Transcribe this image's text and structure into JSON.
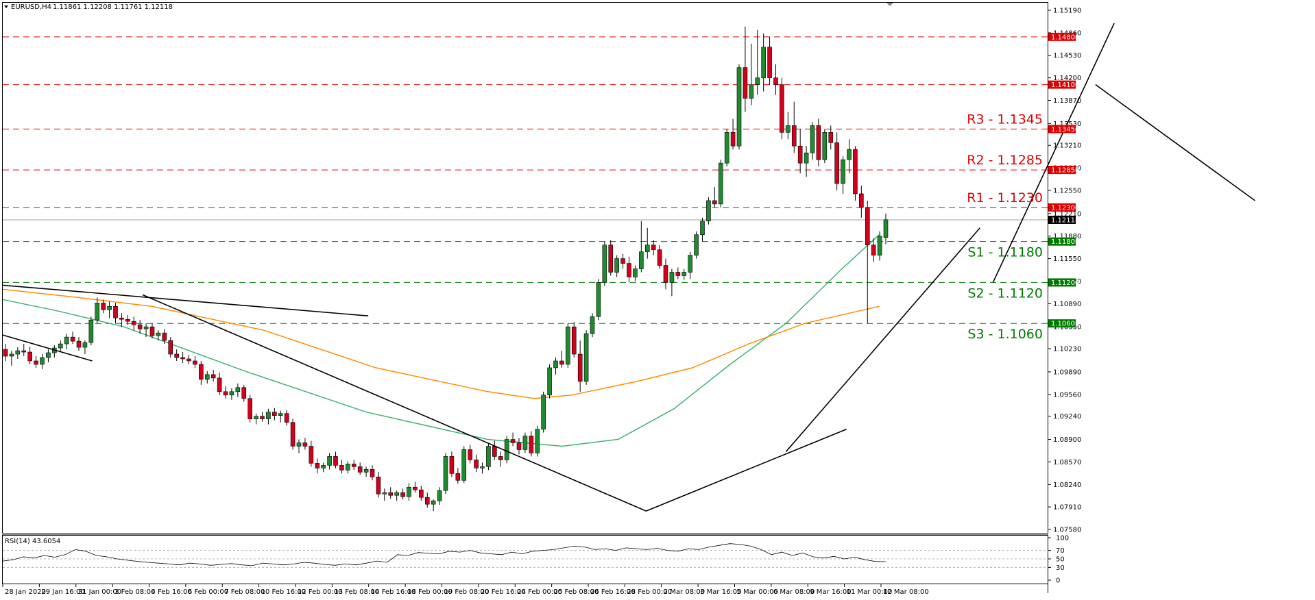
{
  "header": {
    "symbol": "EURUSD,H4",
    "ohlc": "1.11861 1.12208 1.11761 1.12118"
  },
  "chart_data": {
    "type": "candlestick",
    "ylim": [
      1.0756,
      1.1537
    ],
    "y_ticks": [
      "1.15190",
      "1.14860",
      "1.14530",
      "1.14200",
      "1.13870",
      "1.13530",
      "1.13210",
      "1.12880",
      "1.12550",
      "1.12210",
      "1.11880",
      "1.11550",
      "1.11220",
      "1.10890",
      "1.10550",
      "1.10230",
      "1.09890",
      "1.09560",
      "1.09240",
      "1.08900",
      "1.08570",
      "1.08240",
      "1.07910",
      "1.07580"
    ],
    "x_ticks": [
      "28 Jan 2020",
      "29 Jan 16:00",
      "31 Jan 00:00",
      "3 Feb 08:00",
      "4 Feb 16:00",
      "6 Feb 00:00",
      "7 Feb 08:00",
      "10 Feb 16:00",
      "12 Feb 00:00",
      "13 Feb 08:00",
      "14 Feb 16:00",
      "18 Feb 00:00",
      "19 Feb 08:00",
      "20 Feb 16:00",
      "24 Feb 00:00",
      "25 Feb 08:00",
      "26 Feb 16:00",
      "28 Feb 00:00",
      "2 Mar 08:00",
      "3 Mar 16:00",
      "5 Mar 00:00",
      "6 Mar 08:00",
      "9 Mar 16:00",
      "11 Mar 00:00",
      "12 Mar 08:00"
    ],
    "last_price": "1.12118",
    "levels": [
      {
        "id": "r3",
        "label": "R3 - 1.1345",
        "price": 1.1345,
        "badge": "1.13450",
        "color": "#e00000"
      },
      {
        "id": "r2",
        "label": "R2 - 1.1285",
        "price": 1.1285,
        "badge": "1.12850",
        "color": "#e00000"
      },
      {
        "id": "r1",
        "label": "R1 - 1.1230",
        "price": 1.123,
        "badge": "1.12300",
        "color": "#e00000"
      },
      {
        "id": "s1",
        "label": "S1 - 1.1180",
        "price": 1.118,
        "badge": "1.11800",
        "color": "#007a00"
      },
      {
        "id": "s2",
        "label": "S2 - 1.1120",
        "price": 1.112,
        "badge": "1.11200",
        "color": "#007a00"
      },
      {
        "id": "s3",
        "label": "S3 - 1.1060",
        "price": 1.106,
        "badge": "1.10600",
        "color": "#007a00"
      }
    ],
    "extra_levels": [
      {
        "id": "l1480",
        "price": 1.148,
        "badge": "1.14800",
        "color": "#e00000"
      },
      {
        "id": "l1410",
        "price": 1.141,
        "badge": "1.14100",
        "color": "#e00000"
      }
    ],
    "candles": [
      [
        1.1022,
        1.103,
        1.1005,
        1.1012
      ],
      [
        1.1012,
        1.102,
        1.0998,
        1.1015
      ],
      [
        1.1015,
        1.1025,
        1.1008,
        1.102
      ],
      [
        1.102,
        1.103,
        1.1012,
        1.1018
      ],
      [
        1.1018,
        1.1026,
        1.1,
        1.1005
      ],
      [
        1.1005,
        1.1012,
        1.0995,
        1.1
      ],
      [
        1.1,
        1.1015,
        1.0993,
        1.101
      ],
      [
        1.101,
        1.1022,
        1.1003,
        1.1017
      ],
      [
        1.1017,
        1.1028,
        1.101,
        1.1024
      ],
      [
        1.1024,
        1.1035,
        1.1018,
        1.103
      ],
      [
        1.103,
        1.1045,
        1.1022,
        1.104
      ],
      [
        1.104,
        1.1048,
        1.103,
        1.1034
      ],
      [
        1.1034,
        1.104,
        1.102,
        1.1025
      ],
      [
        1.1025,
        1.1035,
        1.1015,
        1.1032
      ],
      [
        1.1032,
        1.107,
        1.1028,
        1.1065
      ],
      [
        1.1065,
        1.1098,
        1.106,
        1.109
      ],
      [
        1.109,
        1.1095,
        1.1075,
        1.108
      ],
      [
        1.108,
        1.1092,
        1.1068,
        1.1085
      ],
      [
        1.1085,
        1.109,
        1.106,
        1.1068
      ],
      [
        1.1068,
        1.1075,
        1.1055,
        1.1066
      ],
      [
        1.1066,
        1.1072,
        1.1058,
        1.1063
      ],
      [
        1.1063,
        1.107,
        1.105,
        1.1058
      ],
      [
        1.1058,
        1.1065,
        1.1045,
        1.1052
      ],
      [
        1.1052,
        1.106,
        1.104,
        1.1055
      ],
      [
        1.1055,
        1.106,
        1.1038,
        1.1042
      ],
      [
        1.1042,
        1.105,
        1.1035,
        1.1046
      ],
      [
        1.1046,
        1.1052,
        1.103,
        1.1035
      ],
      [
        1.1035,
        1.104,
        1.101,
        1.1015
      ],
      [
        1.1015,
        1.1022,
        1.1005,
        1.101
      ],
      [
        1.101,
        1.1018,
        1.1002,
        1.1008
      ],
      [
        1.1008,
        1.1014,
        1.1,
        1.1005
      ],
      [
        1.1005,
        1.1012,
        1.0995,
        1.1
      ],
      [
        1.1,
        1.1005,
        1.097,
        1.0978
      ],
      [
        1.0978,
        1.099,
        1.0972,
        1.0985
      ],
      [
        1.0985,
        1.0992,
        1.0975,
        1.098
      ],
      [
        1.098,
        1.0988,
        1.0955,
        1.096
      ],
      [
        1.096,
        1.0968,
        1.095,
        1.0955
      ],
      [
        1.0955,
        1.0965,
        1.0948,
        1.096
      ],
      [
        1.096,
        1.0972,
        1.0952,
        1.0966
      ],
      [
        1.0966,
        1.097,
        1.0945,
        1.095
      ],
      [
        1.095,
        1.0955,
        1.0915,
        1.092
      ],
      [
        1.092,
        1.0928,
        1.0912,
        1.0924
      ],
      [
        1.0924,
        1.093,
        1.0916,
        1.092
      ],
      [
        1.092,
        1.0935,
        1.0912,
        1.093
      ],
      [
        1.093,
        1.0936,
        1.0918,
        1.0925
      ],
      [
        1.0925,
        1.0932,
        1.0915,
        1.0928
      ],
      [
        1.0928,
        1.0933,
        1.091,
        1.0915
      ],
      [
        1.0915,
        1.092,
        1.0875,
        1.088
      ],
      [
        1.088,
        1.089,
        1.087,
        1.0885
      ],
      [
        1.0885,
        1.0892,
        1.0875,
        1.088
      ],
      [
        1.088,
        1.0888,
        1.085,
        1.0855
      ],
      [
        1.0855,
        1.0862,
        1.084,
        1.0848
      ],
      [
        1.0848,
        1.0856,
        1.0842,
        1.0852
      ],
      [
        1.0852,
        1.087,
        1.0846,
        1.0865
      ],
      [
        1.0865,
        1.0872,
        1.0848,
        1.0852
      ],
      [
        1.0852,
        1.086,
        1.084,
        1.0845
      ],
      [
        1.0845,
        1.0858,
        1.084,
        1.0854
      ],
      [
        1.0854,
        1.086,
        1.0845,
        1.085
      ],
      [
        1.085,
        1.0856,
        1.0838,
        1.0842
      ],
      [
        1.0842,
        1.085,
        1.0835,
        1.0846
      ],
      [
        1.0846,
        1.0852,
        1.083,
        1.0835
      ],
      [
        1.0835,
        1.0842,
        1.0805,
        1.081
      ],
      [
        1.081,
        1.0818,
        1.08,
        1.0812
      ],
      [
        1.0812,
        1.082,
        1.0803,
        1.0808
      ],
      [
        1.0808,
        1.0815,
        1.08,
        1.0812
      ],
      [
        1.0812,
        1.0818,
        1.0802,
        1.0806
      ],
      [
        1.0806,
        1.0826,
        1.08,
        1.082
      ],
      [
        1.082,
        1.0828,
        1.0812,
        1.0816
      ],
      [
        1.0816,
        1.0822,
        1.08,
        1.0805
      ],
      [
        1.0805,
        1.0812,
        1.079,
        1.0795
      ],
      [
        1.0795,
        1.0802,
        1.0785,
        1.08
      ],
      [
        1.08,
        1.082,
        1.0794,
        1.0815
      ],
      [
        1.0815,
        1.087,
        1.081,
        1.0865
      ],
      [
        1.0865,
        1.0872,
        1.0835,
        1.084
      ],
      [
        1.084,
        1.0848,
        1.0825,
        1.083
      ],
      [
        1.083,
        1.088,
        1.0826,
        1.0875
      ],
      [
        1.0875,
        1.0882,
        1.0855,
        1.086
      ],
      [
        1.086,
        1.0868,
        1.0842,
        1.0848
      ],
      [
        1.0848,
        1.0856,
        1.084,
        1.085
      ],
      [
        1.085,
        1.0885,
        1.0845,
        1.088
      ],
      [
        1.088,
        1.0888,
        1.086,
        1.0865
      ],
      [
        1.0865,
        1.0872,
        1.085,
        1.086
      ],
      [
        1.086,
        1.0895,
        1.0855,
        1.089
      ],
      [
        1.089,
        1.09,
        1.088,
        1.0885
      ],
      [
        1.0885,
        1.0892,
        1.0868,
        1.0875
      ],
      [
        1.0875,
        1.09,
        1.087,
        1.0895
      ],
      [
        1.0895,
        1.0902,
        1.0865,
        1.087
      ],
      [
        1.087,
        1.091,
        1.0865,
        1.0905
      ],
      [
        1.0905,
        1.096,
        1.09,
        1.0955
      ],
      [
        1.0955,
        1.1,
        1.095,
        1.0995
      ],
      [
        1.0995,
        1.101,
        1.0985,
        1.1005
      ],
      [
        1.1005,
        1.102,
        1.0995,
        1.1
      ],
      [
        1.1,
        1.106,
        1.0995,
        1.1055
      ],
      [
        1.1055,
        1.1062,
        1.101,
        1.1015
      ],
      [
        1.1015,
        1.1035,
        1.096,
        1.0975
      ],
      [
        1.0975,
        1.105,
        1.097,
        1.1045
      ],
      [
        1.1045,
        1.1075,
        1.104,
        1.107
      ],
      [
        1.107,
        1.1125,
        1.1065,
        1.112
      ],
      [
        1.112,
        1.118,
        1.1115,
        1.1175
      ],
      [
        1.1175,
        1.1182,
        1.113,
        1.1135
      ],
      [
        1.1135,
        1.116,
        1.1128,
        1.1155
      ],
      [
        1.1155,
        1.1162,
        1.114,
        1.1148
      ],
      [
        1.1148,
        1.1158,
        1.112,
        1.1128
      ],
      [
        1.1128,
        1.1145,
        1.1122,
        1.114
      ],
      [
        1.114,
        1.121,
        1.1135,
        1.1165
      ],
      [
        1.1165,
        1.12,
        1.1155,
        1.1175
      ],
      [
        1.1175,
        1.1182,
        1.116,
        1.1168
      ],
      [
        1.1168,
        1.1175,
        1.114,
        1.1145
      ],
      [
        1.1145,
        1.1155,
        1.111,
        1.112
      ],
      [
        1.112,
        1.114,
        1.11,
        1.1135
      ],
      [
        1.1135,
        1.1142,
        1.1125,
        1.113
      ],
      [
        1.113,
        1.114,
        1.1124,
        1.1135
      ],
      [
        1.1135,
        1.1165,
        1.1125,
        1.116
      ],
      [
        1.116,
        1.1195,
        1.1155,
        1.119
      ],
      [
        1.119,
        1.1215,
        1.118,
        1.121
      ],
      [
        1.121,
        1.1245,
        1.1205,
        1.124
      ],
      [
        1.124,
        1.126,
        1.123,
        1.1235
      ],
      [
        1.1235,
        1.13,
        1.123,
        1.1295
      ],
      [
        1.1295,
        1.1345,
        1.129,
        1.134
      ],
      [
        1.134,
        1.136,
        1.1315,
        1.132
      ],
      [
        1.132,
        1.144,
        1.1315,
        1.1435
      ],
      [
        1.1435,
        1.1495,
        1.137,
        1.139
      ],
      [
        1.139,
        1.147,
        1.138,
        1.141
      ],
      [
        1.141,
        1.149,
        1.1395,
        1.142
      ],
      [
        1.142,
        1.1485,
        1.14,
        1.1465
      ],
      [
        1.1465,
        1.148,
        1.141,
        1.142
      ],
      [
        1.142,
        1.144,
        1.1395,
        1.141
      ],
      [
        1.141,
        1.142,
        1.133,
        1.134
      ],
      [
        1.134,
        1.137,
        1.133,
        1.135
      ],
      [
        1.135,
        1.1385,
        1.131,
        1.132
      ],
      [
        1.132,
        1.1345,
        1.128,
        1.1295
      ],
      [
        1.1295,
        1.132,
        1.1275,
        1.131
      ],
      [
        1.131,
        1.1355,
        1.13,
        1.135
      ],
      [
        1.135,
        1.136,
        1.129,
        1.13
      ],
      [
        1.13,
        1.1345,
        1.1295,
        1.134
      ],
      [
        1.134,
        1.135,
        1.1315,
        1.1325
      ],
      [
        1.1325,
        1.134,
        1.1255,
        1.1265
      ],
      [
        1.1265,
        1.1305,
        1.125,
        1.13
      ],
      [
        1.13,
        1.133,
        1.128,
        1.1315
      ],
      [
        1.1315,
        1.132,
        1.124,
        1.125
      ],
      [
        1.125,
        1.1262,
        1.1215,
        1.123
      ],
      [
        1.123,
        1.124,
        1.106,
        1.1175
      ],
      [
        1.1175,
        1.1185,
        1.115,
        1.116
      ],
      [
        1.116,
        1.1195,
        1.1152,
        1.1188
      ],
      [
        1.1186,
        1.1221,
        1.1176,
        1.1212
      ]
    ],
    "sma100": [
      [
        1.1095,
        0
      ],
      [
        1.1078,
        60
      ],
      [
        1.1055,
        130
      ],
      [
        1.099,
        260
      ],
      [
        1.093,
        390
      ],
      [
        1.089,
        520
      ],
      [
        1.088,
        600
      ],
      [
        1.089,
        660
      ],
      [
        1.0935,
        720
      ],
      [
        1.1,
        780
      ],
      [
        1.106,
        840
      ],
      [
        1.114,
        900
      ],
      [
        1.119,
        940
      ]
    ],
    "sma200": [
      [
        1.111,
        0
      ],
      [
        1.1098,
        80
      ],
      [
        1.1085,
        160
      ],
      [
        1.105,
        280
      ],
      [
        1.0995,
        400
      ],
      [
        1.096,
        520
      ],
      [
        1.095,
        570
      ],
      [
        1.0955,
        610
      ],
      [
        1.0975,
        680
      ],
      [
        1.0995,
        740
      ],
      [
        1.103,
        800
      ],
      [
        1.106,
        860
      ],
      [
        1.1085,
        940
      ]
    ],
    "trendlines": [
      {
        "x1": 0,
        "y1": 1.1043,
        "x2": 96,
        "y2": 1.1005
      },
      {
        "x1": 0,
        "y1": 1.1116,
        "x2": 392,
        "y2": 1.1071
      },
      {
        "x1": 150,
        "y1": 1.1102,
        "x2": 690,
        "y2": 1.0785
      },
      {
        "x1": 690,
        "y1": 1.0785,
        "x2": 905,
        "y2": 1.0905
      },
      {
        "x1": 840,
        "y1": 1.0872,
        "x2": 1048,
        "y2": 1.12
      },
      {
        "x1": 1062,
        "y1": 1.112,
        "x2": 1192,
        "y2": 1.15
      },
      {
        "x1": 1172,
        "y1": 1.141,
        "x2": 1343,
        "y2": 1.124
      }
    ],
    "rsi": {
      "label": "RSI(14) 43.6054",
      "ticks": [
        "100",
        "70",
        "50",
        "30",
        "0"
      ],
      "values": [
        45,
        48,
        55,
        52,
        58,
        54,
        60,
        72,
        68,
        58,
        55,
        50,
        47,
        44,
        42,
        40,
        38,
        36,
        40,
        38,
        35,
        37,
        39,
        36,
        34,
        40,
        38,
        36,
        38,
        42,
        40,
        37,
        35,
        38,
        36,
        40,
        45,
        42,
        60,
        58,
        65,
        63,
        62,
        68,
        66,
        70,
        64,
        62,
        60,
        66,
        62,
        68,
        70,
        72,
        76,
        80,
        78,
        72,
        74,
        70,
        76,
        74,
        72,
        75,
        70,
        68,
        74,
        72,
        78,
        82,
        86,
        84,
        80,
        72,
        60,
        66,
        58,
        64,
        55,
        52,
        56,
        50,
        54,
        48,
        44,
        43.6
      ]
    }
  }
}
